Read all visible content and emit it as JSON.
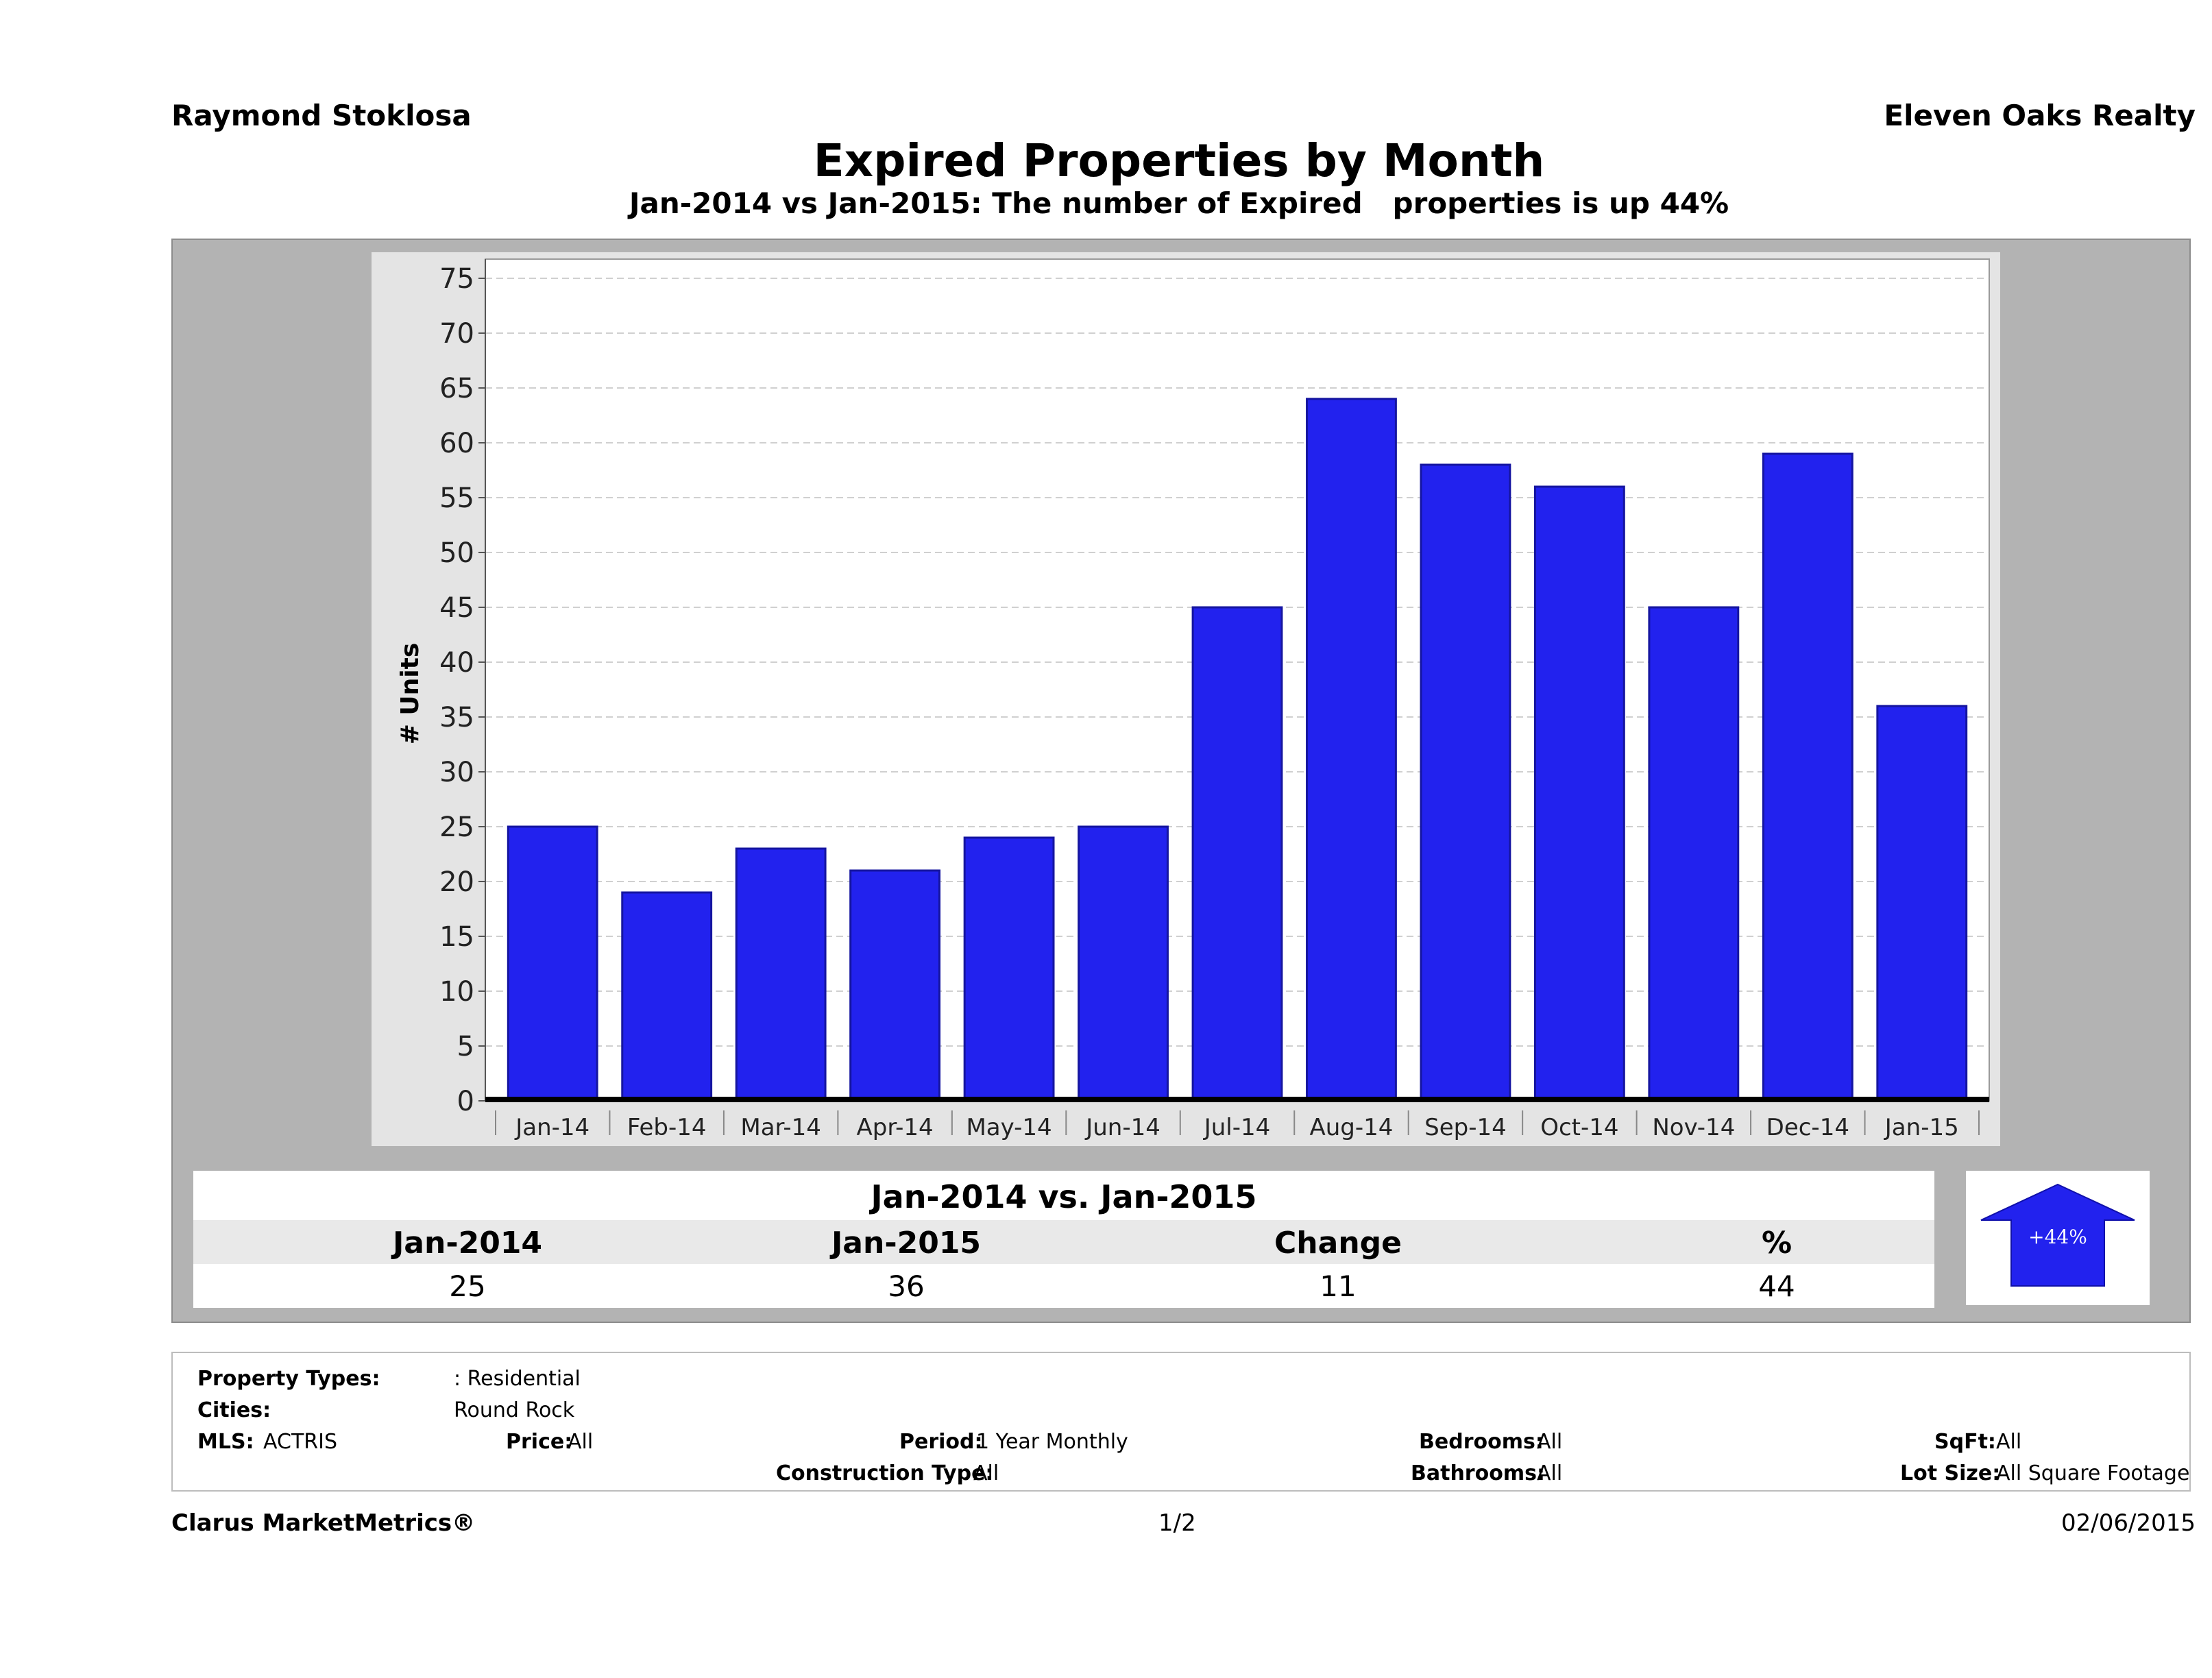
{
  "header": {
    "agent": "Raymond Stoklosa",
    "company": "Eleven Oaks Realty",
    "title": "Expired Properties by Month",
    "subtitle": "Jan-2014 vs Jan-2015: The number of Expired   properties is up 44%"
  },
  "colors": {
    "bar": "#2222ee",
    "panel": "#b3b3b3",
    "plot_bg": "#ffffff",
    "chart_bg": "#e4e4e4"
  },
  "chart_data": {
    "type": "bar",
    "title": "",
    "xlabel": "",
    "ylabel": "# Units",
    "categories": [
      "Jan-14",
      "Feb-14",
      "Mar-14",
      "Apr-14",
      "May-14",
      "Jun-14",
      "Jul-14",
      "Aug-14",
      "Sep-14",
      "Oct-14",
      "Nov-14",
      "Dec-14",
      "Jan-15"
    ],
    "values": [
      25,
      19,
      23,
      21,
      24,
      25,
      45,
      64,
      58,
      56,
      45,
      59,
      36
    ],
    "ylim": [
      0,
      75
    ],
    "yticks": [
      0,
      5,
      10,
      15,
      20,
      25,
      30,
      35,
      40,
      45,
      50,
      55,
      60,
      65,
      70,
      75
    ],
    "grid": true,
    "legend": "none"
  },
  "summary": {
    "title": "Jan-2014 vs. Jan-2015",
    "headers": [
      "Jan-2014",
      "Jan-2015",
      "Change",
      "%"
    ],
    "values": [
      "25",
      "36",
      "11",
      "44"
    ],
    "arrow_label": "+44%"
  },
  "filters": {
    "property_types_label": "Property Types:",
    "property_types_value": ": Residential",
    "cities_label": "Cities:",
    "cities_value": "Round Rock",
    "mls_label": "MLS:",
    "mls_value": "ACTRIS",
    "price_label": "Price:",
    "price_value": "All",
    "period_label": "Period:",
    "period_value": "1 Year Monthly",
    "construction_label": "Construction Type:",
    "construction_value": "All",
    "bedrooms_label": "Bedrooms:",
    "bedrooms_value": "All",
    "bathrooms_label": "Bathrooms:",
    "bathrooms_value": "All",
    "sqft_label": "SqFt:",
    "sqft_value": "All",
    "lotsize_label": "Lot Size:",
    "lotsize_value": "All Square Footage"
  },
  "footer": {
    "brand": "Clarus MarketMetrics®",
    "page": "1/2",
    "date": "02/06/2015"
  }
}
